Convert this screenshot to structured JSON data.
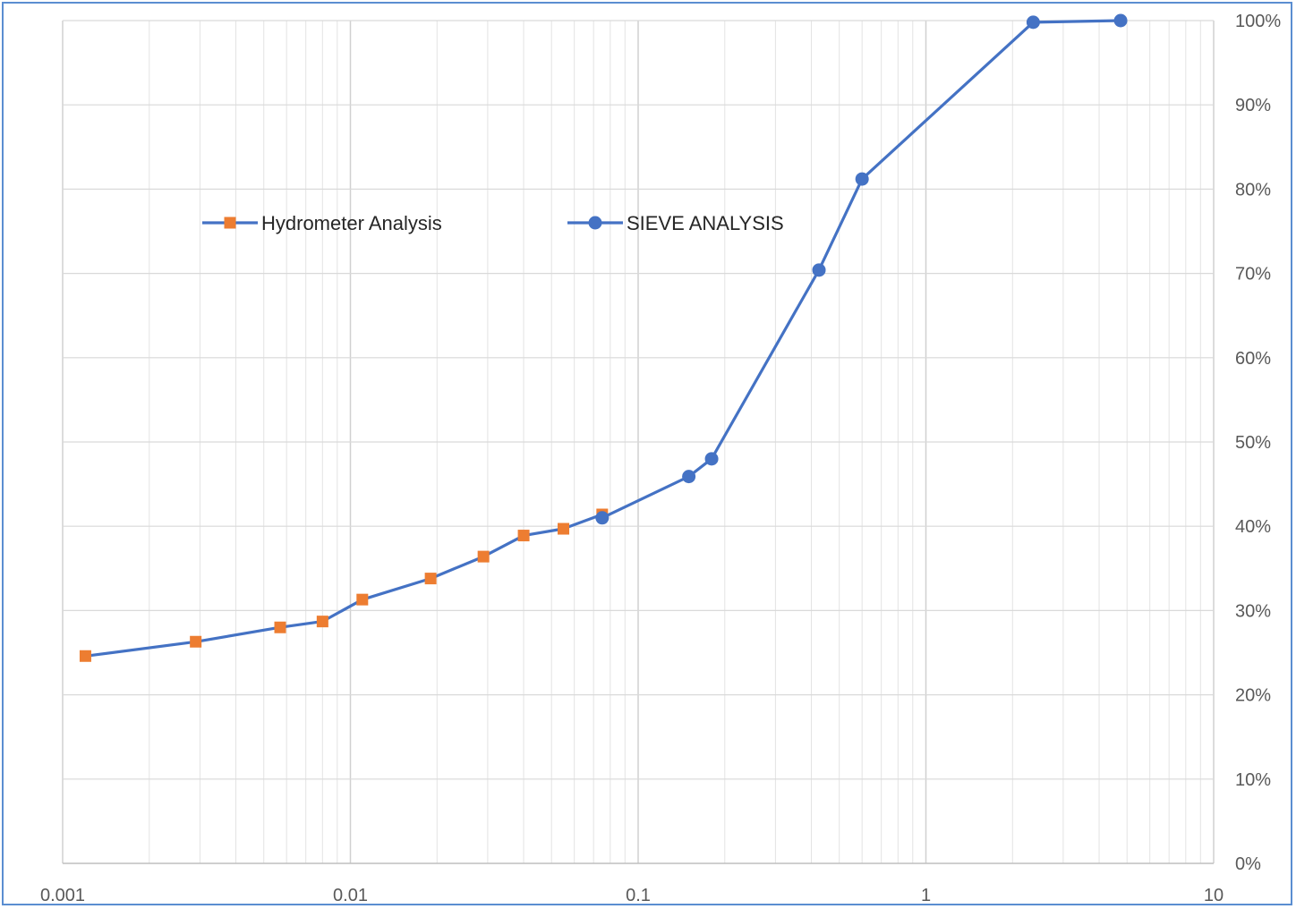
{
  "chart_data": {
    "type": "scatter",
    "x_scale": "log",
    "xlim": [
      0.001,
      10
    ],
    "ylim": [
      0,
      1
    ],
    "grid": true,
    "legend_position": "top-left",
    "x_tick_labels": [
      "0.001",
      "0.01",
      "0.1",
      "1",
      "10"
    ],
    "y_tick_labels": [
      "0%",
      "10%",
      "20%",
      "30%",
      "40%",
      "50%",
      "60%",
      "70%",
      "80%",
      "90%",
      "100%"
    ],
    "y_axis_side": "right",
    "series": [
      {
        "name": "Hydrometer Analysis",
        "marker": "square",
        "line_color": "#4472c4",
        "marker_color": "#ed7d31",
        "points": [
          {
            "x": 0.0012,
            "y": 0.246
          },
          {
            "x": 0.0029,
            "y": 0.263
          },
          {
            "x": 0.0057,
            "y": 0.28
          },
          {
            "x": 0.008,
            "y": 0.287
          },
          {
            "x": 0.011,
            "y": 0.313
          },
          {
            "x": 0.019,
            "y": 0.338
          },
          {
            "x": 0.029,
            "y": 0.364
          },
          {
            "x": 0.04,
            "y": 0.389
          },
          {
            "x": 0.055,
            "y": 0.397
          },
          {
            "x": 0.075,
            "y": 0.414
          }
        ]
      },
      {
        "name": "SIEVE ANALYSIS",
        "marker": "circle",
        "line_color": "#4472c4",
        "marker_color": "#4472c4",
        "points": [
          {
            "x": 0.075,
            "y": 0.41
          },
          {
            "x": 0.15,
            "y": 0.459
          },
          {
            "x": 0.18,
            "y": 0.48
          },
          {
            "x": 0.425,
            "y": 0.704
          },
          {
            "x": 0.6,
            "y": 0.812
          },
          {
            "x": 2.36,
            "y": 0.998
          },
          {
            "x": 4.75,
            "y": 1.0
          }
        ]
      }
    ]
  }
}
